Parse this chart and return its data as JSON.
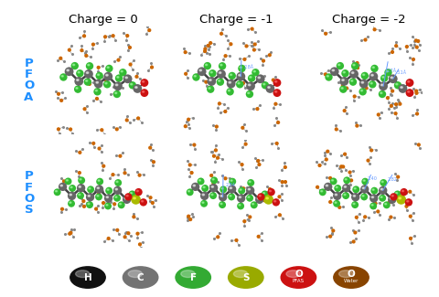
{
  "col_labels": [
    "Charge = 0",
    "Charge = -1",
    "Charge = -2"
  ],
  "row_label_color": "#1E8FFF",
  "row_label_fontsize": 9.5,
  "col_label_fontsize": 9.5,
  "background_color": "#ffffff",
  "legend_items": [
    {
      "label": "H",
      "sublabel": "",
      "color": "#111111",
      "text_color": "#ffffff"
    },
    {
      "label": "C",
      "sublabel": "",
      "color": "#737373",
      "text_color": "#ffffff"
    },
    {
      "label": "F",
      "sublabel": "",
      "color": "#33aa33",
      "text_color": "#ffffff"
    },
    {
      "label": "S",
      "sublabel": "",
      "color": "#99aa00",
      "text_color": "#ffffff"
    },
    {
      "label": "O",
      "sublabel": "PFAS",
      "color": "#cc1111",
      "text_color": "#ffffff"
    },
    {
      "label": "O",
      "sublabel": "Water",
      "color": "#884400",
      "text_color": "#ffffff"
    }
  ],
  "atom_colors": {
    "H": "#111111",
    "C": "#666666",
    "F": "#33bb33",
    "S": "#aabb00",
    "O": "#cc1111",
    "Ow": "#cc6600"
  },
  "water_line_color": "#aaaaaa",
  "water_O_color": "#cc6600",
  "water_H_color": "#aaaaaa",
  "bond_color": "#444444",
  "dist_color": "#6699ff",
  "fig_width": 4.8,
  "fig_height": 3.25,
  "dpi": 100
}
